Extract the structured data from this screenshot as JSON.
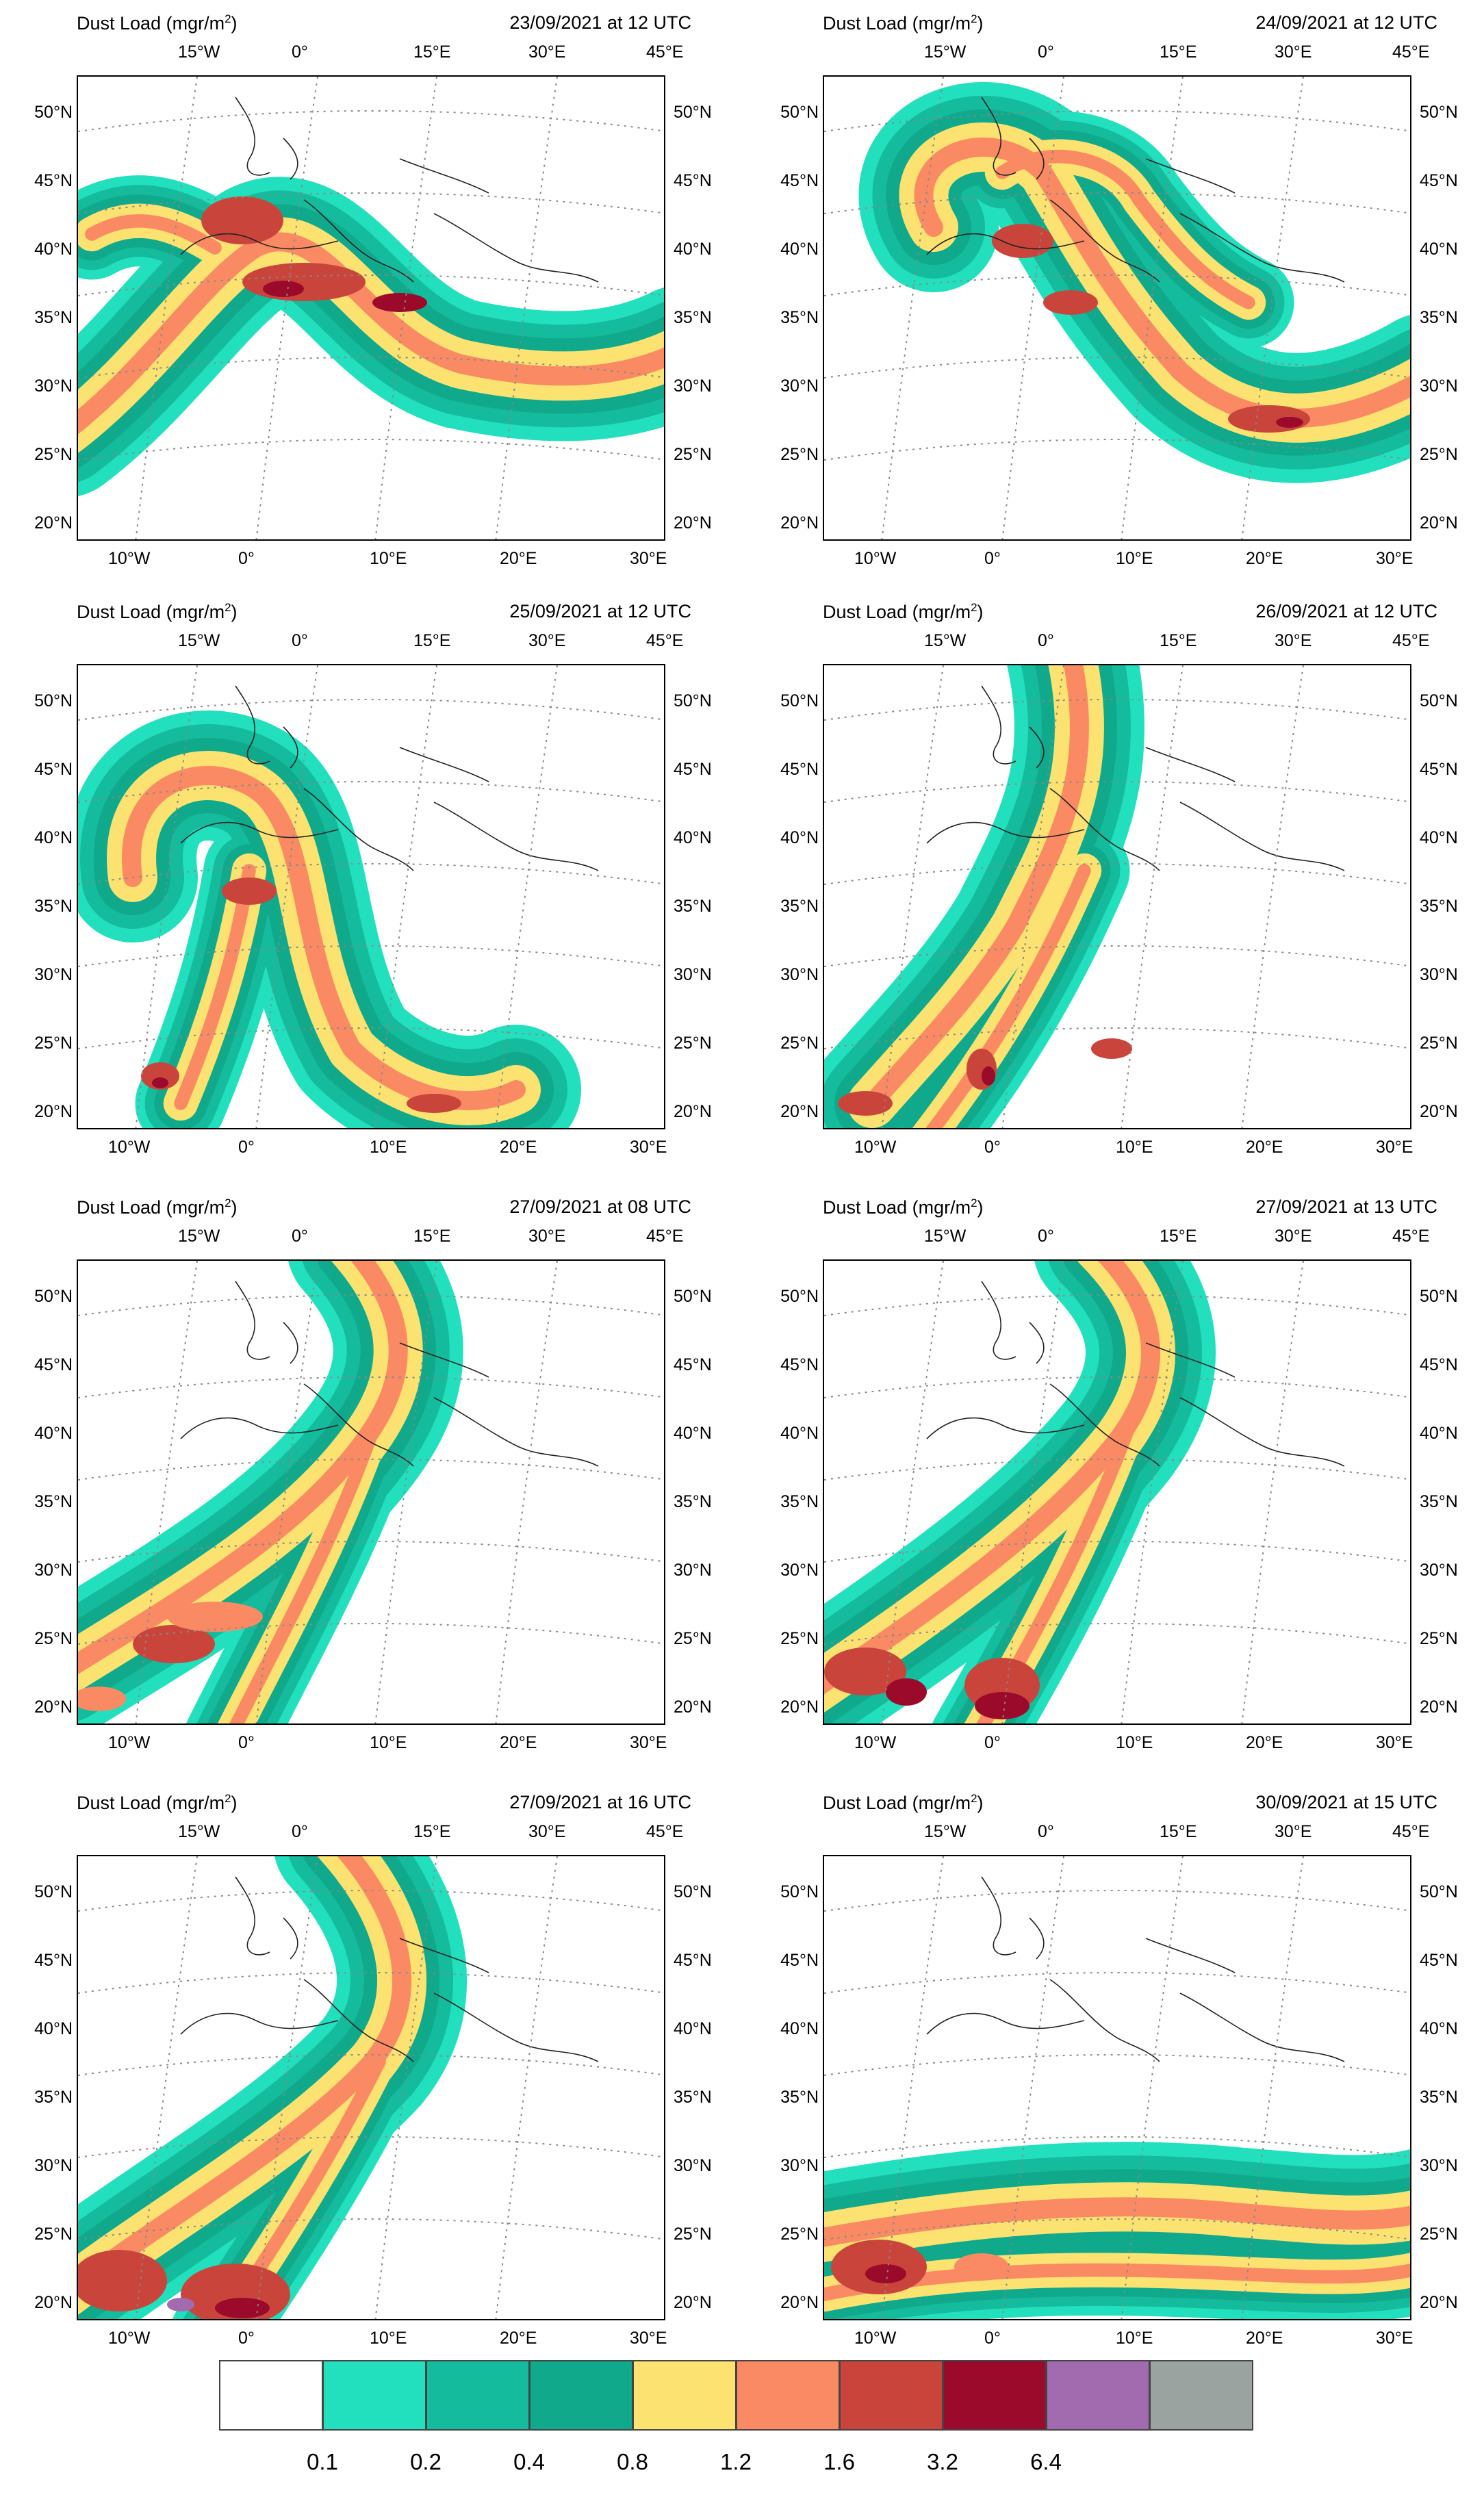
{
  "title_prefix": "Dust Load (mgr/m",
  "title_sup": "2",
  "title_suffix": ")",
  "panels": [
    {
      "timestamp": "23/09/2021 at 12 UTC"
    },
    {
      "timestamp": "24/09/2021 at 12 UTC"
    },
    {
      "timestamp": "25/09/2021 at 12 UTC"
    },
    {
      "timestamp": "26/09/2021 at 12 UTC"
    },
    {
      "timestamp": "27/09/2021 at 08 UTC"
    },
    {
      "timestamp": "27/09/2021 at 13 UTC"
    },
    {
      "timestamp": "27/09/2021 at 16 UTC"
    },
    {
      "timestamp": "30/09/2021 at 15 UTC"
    }
  ],
  "axis": {
    "top": [
      "15°W",
      "0°",
      "15°E",
      "30°E",
      "45°E"
    ],
    "bottom": [
      "10°W",
      "0°",
      "10°E",
      "20°E",
      "30°E"
    ],
    "lat": [
      "50°N",
      "45°N",
      "40°N",
      "35°N",
      "30°N",
      "25°N",
      "20°N"
    ]
  },
  "legend": {
    "levels": [
      "0.1",
      "0.2",
      "0.4",
      "0.8",
      "1.2",
      "1.6",
      "3.2",
      "6.4"
    ],
    "colors": [
      "#ffffff",
      "#22e0bd",
      "#14bb9c",
      "#10a98c",
      "#fbe271",
      "#fa8a63",
      "#c9453c",
      "#9b0a2a",
      "#a26bb0",
      "#9aa39f"
    ]
  }
}
